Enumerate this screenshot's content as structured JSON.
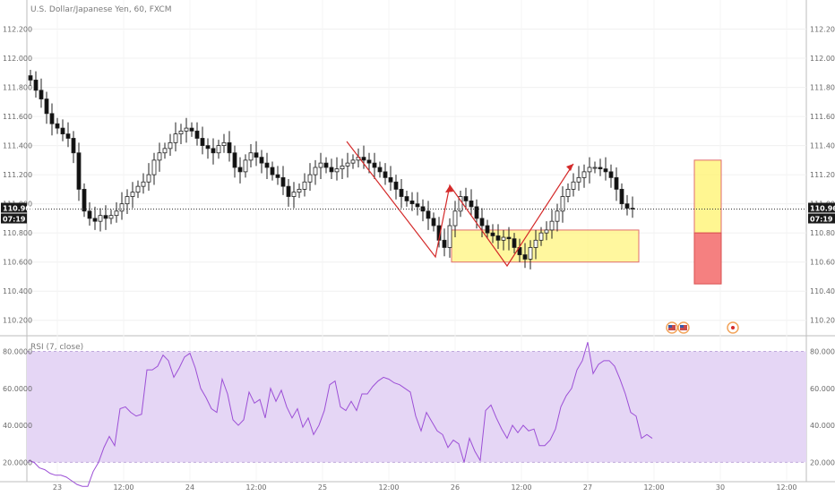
{
  "chart_data": [
    {
      "type": "candlestick",
      "title": "U.S. Dollar/Japanese Yen, 60, FXCM",
      "ylim": [
        110.1,
        112.4
      ],
      "y_ticks": [
        "112.200",
        "112.000",
        "111.800",
        "111.600",
        "111.400",
        "111.200",
        "111.000",
        "110.800",
        "110.600",
        "110.400",
        "110.200"
      ],
      "x_ticks": [
        "23",
        "12:00",
        "24",
        "12:00",
        "25",
        "12:00",
        "26",
        "12:00",
        "27",
        "12:00",
        "30",
        "12:00"
      ],
      "last_price": "110.964",
      "countdown": "07:19",
      "close": [
        111.85,
        111.78,
        111.72,
        111.62,
        111.55,
        111.52,
        111.48,
        111.45,
        111.35,
        111.1,
        110.95,
        110.9,
        110.88,
        110.92,
        110.9,
        110.92,
        110.95,
        111.0,
        111.05,
        111.08,
        111.12,
        111.15,
        111.2,
        111.3,
        111.35,
        111.38,
        111.42,
        111.48,
        111.5,
        111.52,
        111.5,
        111.45,
        111.4,
        111.38,
        111.35,
        111.4,
        111.42,
        111.35,
        111.25,
        111.22,
        111.3,
        111.35,
        111.32,
        111.28,
        111.25,
        111.2,
        111.18,
        111.12,
        111.05,
        111.08,
        111.1,
        111.15,
        111.2,
        111.25,
        111.28,
        111.25,
        111.22,
        111.24,
        111.26,
        111.28,
        111.3,
        111.32,
        111.3,
        111.28,
        111.25,
        111.22,
        111.18,
        111.15,
        111.1,
        111.05,
        111.02,
        111.0,
        110.98,
        110.95,
        110.9,
        110.85,
        110.75,
        110.7,
        110.85,
        110.95,
        111.05,
        111.02,
        110.98,
        110.9,
        110.85,
        110.8,
        110.78,
        110.75,
        110.77,
        110.76,
        110.7,
        110.65,
        110.62,
        110.7,
        110.75,
        110.8,
        110.82,
        110.88,
        110.95,
        111.05,
        111.1,
        111.15,
        111.18,
        111.22,
        111.25,
        111.25,
        111.24,
        111.22,
        111.18,
        111.1,
        111.0,
        110.97,
        110.964
      ],
      "zones": [
        {
          "kind": "demand-zone",
          "color": "#fff475",
          "low": 110.6,
          "high": 110.82
        },
        {
          "kind": "target",
          "color": "#fff475",
          "low": 110.8,
          "high": 111.3
        },
        {
          "kind": "stop",
          "color": "#f58080",
          "low": 110.45,
          "high": 110.8
        }
      ]
    },
    {
      "type": "line",
      "title": "RSI (7, close)",
      "ylim": [
        10,
        88
      ],
      "y_ticks": [
        "80.0000",
        "60.0000",
        "40.0000",
        "20.0000"
      ],
      "band": [
        20,
        80
      ],
      "line_color": "#9c4fd6",
      "band_color": "#e5d6f5",
      "values": [
        21,
        20,
        17,
        16,
        14,
        13,
        13,
        12,
        10,
        8,
        7,
        7,
        15,
        20,
        28,
        34,
        29,
        49,
        50,
        47,
        45,
        46,
        70,
        70,
        72,
        78,
        75,
        66,
        71,
        77,
        79,
        71,
        60,
        55,
        49,
        47,
        65,
        57,
        43,
        40,
        43,
        58,
        52,
        54,
        44,
        60,
        53,
        59,
        50,
        44,
        49,
        39,
        44,
        35,
        40,
        48,
        62,
        64,
        50,
        48,
        53,
        48,
        57,
        57,
        61,
        64,
        66,
        65,
        63,
        62,
        60,
        58,
        45,
        37,
        47,
        42,
        37,
        35,
        28,
        32,
        30,
        20,
        33,
        26,
        21,
        48,
        51,
        44,
        38,
        33,
        40,
        36,
        40,
        37,
        38,
        29,
        29,
        32,
        38,
        50,
        56,
        60,
        70,
        75,
        85,
        68,
        73,
        75,
        75,
        72,
        65,
        57,
        47,
        45,
        33,
        35,
        33
      ]
    }
  ],
  "icons": {
    "event_markers": "us-flag-icon",
    "earnings_marker": "circle-marker-icon"
  }
}
